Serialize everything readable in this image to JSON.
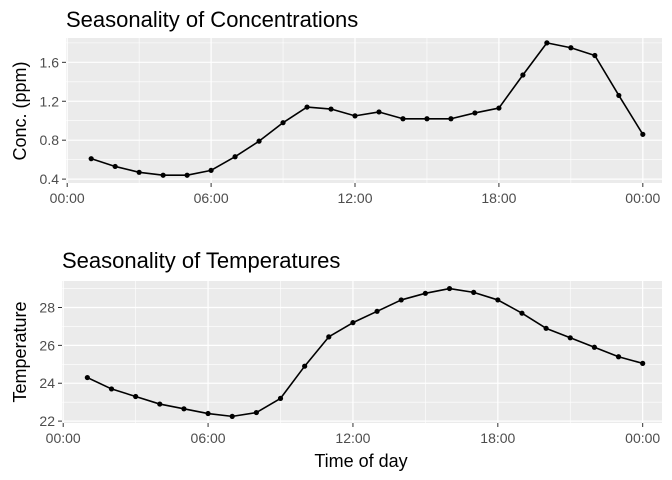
{
  "chart_data": [
    {
      "type": "line",
      "title": "Seasonality of Concentrations",
      "xlabel": "",
      "ylabel": "Conc. (ppm)",
      "x_ticks": [
        "00:00",
        "06:00",
        "12:00",
        "18:00",
        "00:00"
      ],
      "x_tick_hours": [
        0,
        6,
        12,
        18,
        24
      ],
      "xlim_hours": [
        -0.05,
        24.8
      ],
      "y_ticks": [
        0.4,
        0.8,
        1.2,
        1.6
      ],
      "y_tick_labels": [
        "0.4",
        "0.8",
        "1.2",
        "1.6"
      ],
      "ylim": [
        0.36,
        1.85
      ],
      "grid": true,
      "legend": "none",
      "series": [
        {
          "color": "#000000",
          "x": [
            "01:00",
            "02:00",
            "03:00",
            "04:00",
            "05:00",
            "06:00",
            "07:00",
            "08:00",
            "09:00",
            "10:00",
            "11:00",
            "12:00",
            "13:00",
            "14:00",
            "15:00",
            "16:00",
            "17:00",
            "18:00",
            "19:00",
            "20:00",
            "21:00",
            "22:00",
            "23:00",
            "00:00"
          ],
          "values": [
            0.61,
            0.53,
            0.47,
            0.44,
            0.44,
            0.49,
            0.63,
            0.79,
            0.98,
            1.14,
            1.12,
            1.05,
            1.09,
            1.02,
            1.02,
            1.02,
            1.08,
            1.13,
            1.47,
            1.8,
            1.75,
            1.67,
            1.26,
            0.86
          ]
        }
      ]
    },
    {
      "type": "line",
      "title": "Seasonality of Temperatures",
      "xlabel": "Time of day",
      "ylabel": "Temperature",
      "x_ticks": [
        "00:00",
        "06:00",
        "12:00",
        "18:00",
        "00:00"
      ],
      "x_tick_hours": [
        0,
        6,
        12,
        18,
        24
      ],
      "xlim_hours": [
        -0.05,
        24.8
      ],
      "y_ticks": [
        22,
        24,
        26,
        28
      ],
      "y_tick_labels": [
        "22",
        "24",
        "26",
        "28"
      ],
      "ylim": [
        21.9,
        29.4
      ],
      "grid": true,
      "legend": "none",
      "series": [
        {
          "color": "#000000",
          "x": [
            "01:00",
            "02:00",
            "03:00",
            "04:00",
            "05:00",
            "06:00",
            "07:00",
            "08:00",
            "09:00",
            "10:00",
            "11:00",
            "12:00",
            "13:00",
            "14:00",
            "15:00",
            "16:00",
            "17:00",
            "18:00",
            "19:00",
            "20:00",
            "21:00",
            "22:00",
            "23:00",
            "00:00"
          ],
          "values": [
            24.3,
            23.7,
            23.3,
            22.9,
            22.65,
            22.4,
            22.25,
            22.45,
            23.2,
            24.9,
            26.45,
            27.2,
            27.8,
            28.4,
            28.75,
            29.0,
            28.8,
            28.4,
            27.7,
            26.9,
            26.4,
            25.9,
            25.4,
            25.05
          ]
        }
      ]
    }
  ],
  "colors": {
    "panel_background": "#ebebeb",
    "grid_major": "#ffffff",
    "tick_text": "#4d4d4d",
    "tick_mark": "#333333",
    "line": "#000000"
  }
}
